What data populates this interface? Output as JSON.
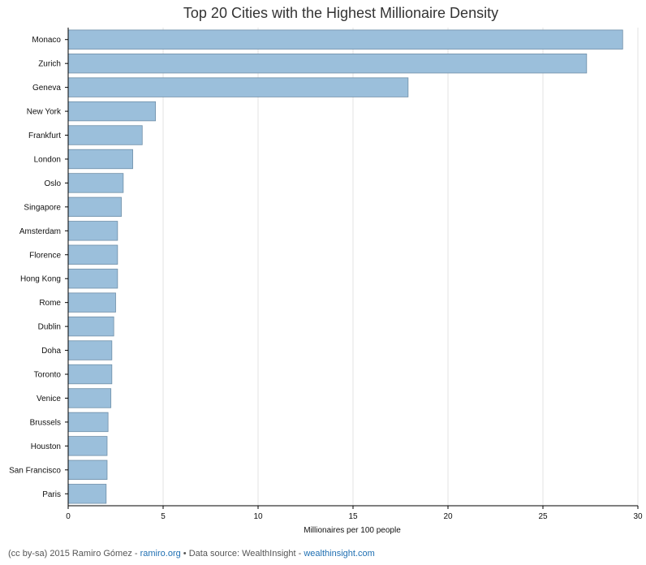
{
  "chart_data": {
    "type": "bar",
    "orientation": "horizontal",
    "title": "Top 20 Cities with the Highest Millionaire Density",
    "xlabel": "Millionaires per 100 people",
    "ylabel": "",
    "xlim": [
      0,
      30
    ],
    "xticks": [
      0,
      5,
      10,
      15,
      20,
      25,
      30
    ],
    "grid": true,
    "bar_color": "#9bbfdb",
    "bar_edge_color": "#6f8fa8",
    "categories": [
      "Monaco",
      "Zurich",
      "Geneva",
      "New York",
      "Frankfurt",
      "London",
      "Oslo",
      "Singapore",
      "Amsterdam",
      "Florence",
      "Hong Kong",
      "Rome",
      "Dublin",
      "Doha",
      "Toronto",
      "Venice",
      "Brussels",
      "Houston",
      "San Francisco",
      "Paris"
    ],
    "values": [
      29.2,
      27.3,
      17.9,
      4.6,
      3.9,
      3.4,
      2.9,
      2.8,
      2.6,
      2.6,
      2.6,
      2.5,
      2.4,
      2.3,
      2.3,
      2.25,
      2.1,
      2.05,
      2.05,
      2.0
    ]
  },
  "footer": {
    "prefix": "(cc by-sa) 2015 Ramiro Gómez - ",
    "link1": "ramiro.org",
    "middle": " • Data source: WealthInsight - ",
    "link2": "wealthinsight.com"
  }
}
